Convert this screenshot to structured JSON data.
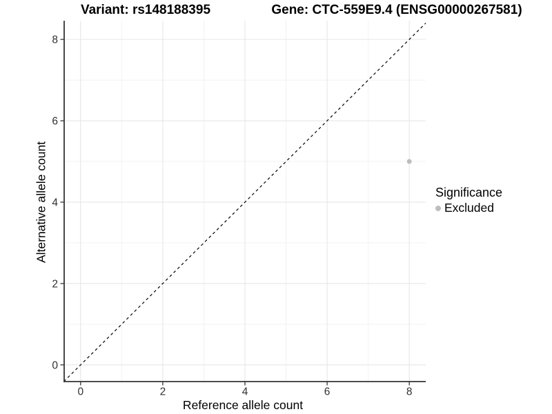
{
  "header": {
    "variant_title": "Variant: rs148188395",
    "gene_title": "Gene: CTC-559E9.4 (ENSG00000267581)"
  },
  "chart_data": {
    "type": "scatter",
    "title": "Variant: rs148188395   Gene: CTC-559E9.4 (ENSG00000267581)",
    "xlabel": "Reference allele count",
    "ylabel": "Alternative allele count",
    "xlim": [
      -0.4,
      8.4
    ],
    "ylim": [
      -0.41,
      8.46
    ],
    "x_ticks": [
      0,
      2,
      4,
      6,
      8
    ],
    "y_ticks": [
      0,
      2,
      4,
      6,
      8
    ],
    "x_minor_ticks": [
      1,
      3,
      5,
      7
    ],
    "y_minor_ticks": [
      1,
      3,
      5,
      7
    ],
    "grid": "major and minor gridlines, light grey on white panel",
    "points": [
      {
        "x": 8,
        "y": 5,
        "significance": "Excluded"
      }
    ],
    "reference_line": {
      "type": "identity y=x",
      "style": "dashed",
      "color": "#000000"
    },
    "legend_position": "right",
    "colors": {
      "point": "#bdbdbd",
      "grid_major": "#e6e6e6",
      "grid_minor": "#f2f2f2",
      "axis_line": "#333333",
      "tick_text": "#303030"
    }
  },
  "legend": {
    "title": "Significance",
    "items": [
      {
        "label": "Excluded",
        "color": "#bdbdbd"
      }
    ]
  }
}
